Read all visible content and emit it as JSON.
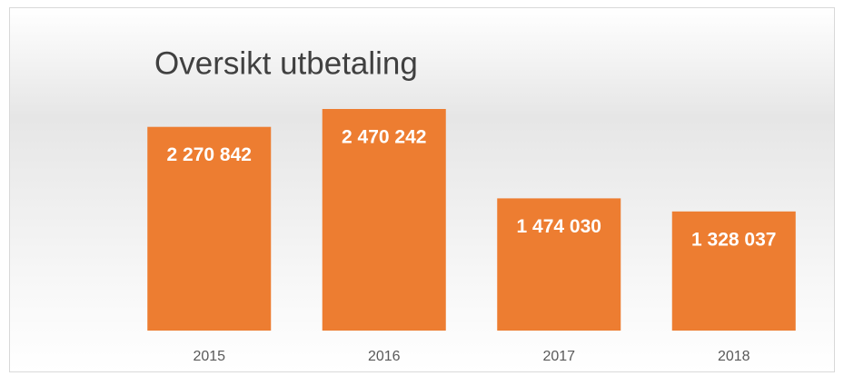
{
  "chart_data": {
    "type": "bar",
    "title": "Oversikt utbetaling",
    "categories": [
      "2015",
      "2016",
      "2017",
      "2018"
    ],
    "values": [
      2270842,
      2470242,
      1474030,
      1328037
    ],
    "value_labels": [
      "2 270 842",
      "2 470 242",
      "1 474 030",
      "1 328 037"
    ],
    "color": "#ed7d31"
  }
}
